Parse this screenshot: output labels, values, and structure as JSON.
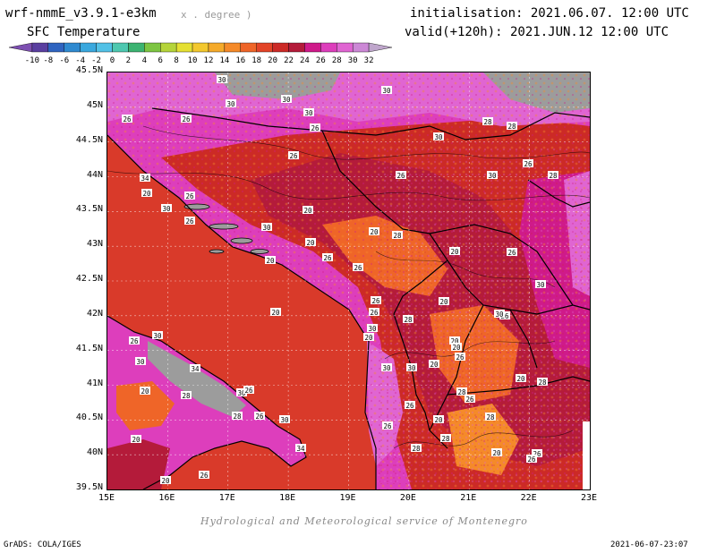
{
  "header": {
    "model": "wrf-nmmE_v3.9.1-e3km",
    "units": "x . degree )",
    "title": "SFC Temperature",
    "init": "initialisation: 2021.06.07. 12:00 UTC",
    "valid": "valid(+120h): 2021.JUN.12 12:00 UTC"
  },
  "colorbar": {
    "labels": [
      "-10",
      "-8",
      "-6",
      "-4",
      "-2",
      "0",
      "2",
      "4",
      "6",
      "8",
      "10",
      "12",
      "14",
      "16",
      "18",
      "20",
      "22",
      "24",
      "26",
      "28",
      "30",
      "32"
    ],
    "colors": [
      "#7d4fb1",
      "#5a3fa0",
      "#2f64c0",
      "#2f8ad0",
      "#3aa8de",
      "#52c1e6",
      "#4ec8b0",
      "#3cb371",
      "#7dc542",
      "#b5d43a",
      "#e5e033",
      "#f3c82e",
      "#f5aa2a",
      "#f58a29",
      "#ef6528",
      "#e34427",
      "#cc2a26",
      "#b41b3a",
      "#cf1a8a",
      "#dd3ebc",
      "#e065d2",
      "#cc88d6",
      "#bfa6cc"
    ]
  },
  "map": {
    "lat_labels": [
      "45.5N",
      "45N",
      "44.5N",
      "44N",
      "43.5N",
      "43N",
      "42.5N",
      "42N",
      "41.5N",
      "41N",
      "40.5N",
      "40N",
      "39.5N"
    ],
    "lon_labels": [
      "15E",
      "16E",
      "17E",
      "18E",
      "19E",
      "20E",
      "21E",
      "22E",
      "23E"
    ],
    "contour_labels": [
      "30",
      "30",
      "30",
      "30",
      "30",
      "26",
      "26",
      "26",
      "30",
      "28",
      "28",
      "26",
      "30",
      "28",
      "26",
      "26",
      "34",
      "20",
      "26",
      "30",
      "26",
      "20",
      "30",
      "28",
      "20",
      "26",
      "20",
      "20",
      "20",
      "26",
      "26",
      "20",
      "26",
      "26",
      "30",
      "28",
      "20",
      "20",
      "30",
      "30",
      "20",
      "26",
      "28",
      "20",
      "26",
      "28",
      "30",
      "26",
      "30",
      "30",
      "34",
      "28",
      "30",
      "28",
      "20",
      "26",
      "26",
      "30",
      "20",
      "20",
      "26",
      "28",
      "26",
      "28",
      "20",
      "26",
      "34",
      "26",
      "30",
      "20",
      "20",
      "28",
      "26",
      "20",
      "26"
    ],
    "colors": {
      "sea": "#d93a2a",
      "land_hot": "#cc2a26",
      "land_warm": "#b41b3a",
      "land_magenta": "#cf1a8a",
      "land_pink": "#dd3ebc",
      "land_violet": "#e065d2",
      "land_lilac": "#cc88d6",
      "mountain": "#9c9c9c",
      "orange": "#ef6528",
      "yellow": "#f3c82e"
    }
  },
  "footer": {
    "credit": "Hydrological and Meteorological service of Montenegro",
    "grads": "GrADS: COLA/IGES",
    "timestamp": "2021-06-07-23:07"
  }
}
